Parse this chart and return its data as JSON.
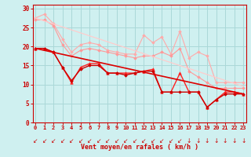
{
  "xlabel": "Vent moyen/en rafales ( km/h )",
  "background_color": "#cff0f0",
  "grid_color": "#aad8d8",
  "x_ticks": [
    0,
    1,
    2,
    3,
    4,
    5,
    6,
    7,
    8,
    9,
    10,
    11,
    12,
    13,
    14,
    15,
    16,
    17,
    18,
    19,
    20,
    21,
    22,
    23
  ],
  "ylim": [
    0,
    31
  ],
  "xlim": [
    -0.3,
    23.3
  ],
  "yticks": [
    0,
    5,
    10,
    15,
    20,
    25,
    30
  ],
  "series": [
    {
      "x": [
        0,
        1,
        2,
        3,
        4,
        5,
        6,
        7,
        8,
        9,
        10,
        11,
        12,
        13,
        14,
        15,
        16,
        17,
        18,
        19,
        20,
        21,
        22,
        23
      ],
      "y": [
        27.5,
        28.5,
        26.0,
        22.0,
        18.5,
        20.5,
        21.0,
        20.5,
        19.0,
        18.5,
        18.0,
        18.0,
        23.0,
        21.0,
        22.5,
        18.0,
        24.0,
        17.0,
        18.5,
        17.5,
        10.5,
        10.5,
        10.5,
        10.5
      ],
      "color": "#ffaaaa",
      "marker": "D",
      "markersize": 1.8,
      "linewidth": 0.8
    },
    {
      "x": [
        0,
        1,
        2,
        3,
        4,
        5,
        6,
        7,
        8,
        9,
        10,
        11,
        12,
        13,
        14,
        15,
        16,
        17,
        18,
        19,
        20,
        21,
        22,
        23
      ],
      "y": [
        27.0,
        27.0,
        25.5,
        20.5,
        17.5,
        19.0,
        19.5,
        19.0,
        18.5,
        18.0,
        17.5,
        17.0,
        17.5,
        17.5,
        18.5,
        17.5,
        19.5,
        13.5,
        12.0,
        10.5,
        9.0,
        9.0,
        9.0,
        9.0
      ],
      "color": "#ff9999",
      "marker": "D",
      "markersize": 1.8,
      "linewidth": 0.8
    },
    {
      "x": [
        0,
        1,
        2,
        3,
        4,
        5,
        6,
        7,
        8,
        9,
        10,
        11,
        12,
        13,
        14,
        15,
        16,
        17,
        18,
        19,
        20,
        21,
        22,
        23
      ],
      "y": [
        19.5,
        19.5,
        18.5,
        14.5,
        10.5,
        14.5,
        15.5,
        15.5,
        13.0,
        13.0,
        13.0,
        13.0,
        13.5,
        14.0,
        8.0,
        8.0,
        13.0,
        8.0,
        8.0,
        4.0,
        6.0,
        8.0,
        8.0,
        7.5
      ],
      "color": "#ff2222",
      "marker": "^",
      "markersize": 2.5,
      "linewidth": 1.0
    },
    {
      "x": [
        0,
        1,
        2,
        3,
        4,
        5,
        6,
        7,
        8,
        9,
        10,
        11,
        12,
        13,
        14,
        15,
        16,
        17,
        18,
        19,
        20,
        21,
        22,
        23
      ],
      "y": [
        19.5,
        19.5,
        18.5,
        14.5,
        11.0,
        14.0,
        15.0,
        15.0,
        13.0,
        13.0,
        12.5,
        13.0,
        13.5,
        13.5,
        8.0,
        8.0,
        8.0,
        8.0,
        8.0,
        4.0,
        6.0,
        7.5,
        7.5,
        7.5
      ],
      "color": "#cc0000",
      "marker": "D",
      "markersize": 1.8,
      "linewidth": 1.0
    },
    {
      "x": [
        0,
        23
      ],
      "y": [
        27.5,
        9.5
      ],
      "color": "#ffcccc",
      "marker": null,
      "linewidth": 0.9
    },
    {
      "x": [
        0,
        23
      ],
      "y": [
        19.5,
        7.5
      ],
      "color": "#dd0000",
      "marker": null,
      "linewidth": 1.2
    }
  ],
  "arrow_color": "#cc0000",
  "tick_color": "#cc0000",
  "axis_label_color": "#cc0000",
  "spine_color": "#cc0000"
}
